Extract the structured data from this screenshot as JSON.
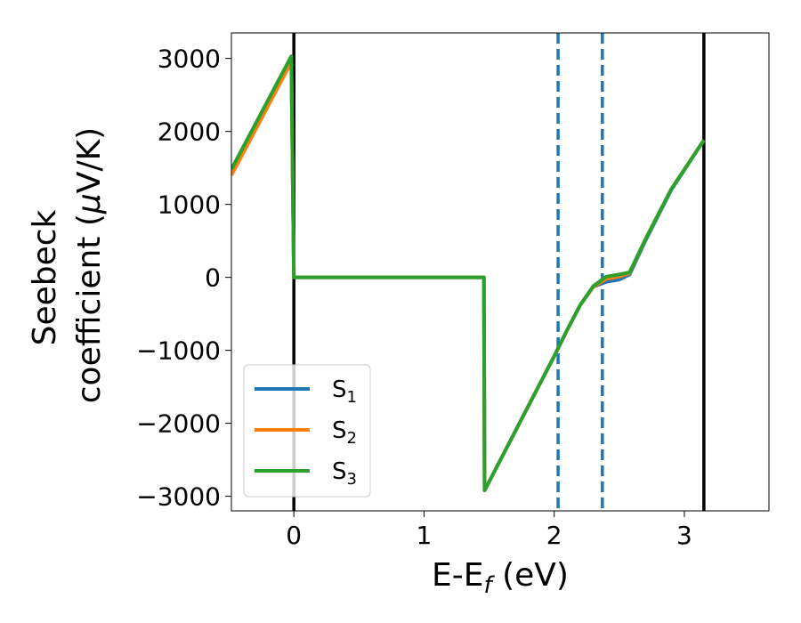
{
  "chart_data": {
    "type": "line",
    "title": "",
    "xlabel": "E-E",
    "xlabel_sub": "f",
    "xlabel_unit": " (eV)",
    "ylabel_line1": "Seebeck",
    "ylabel_line2_prefix": "coefficient  (",
    "ylabel_mu": "μ",
    "ylabel_line2_suffix": "V/K)",
    "xlim": [
      -0.48,
      3.65
    ],
    "ylim": [
      -3200,
      3350
    ],
    "x_ticks": [
      0,
      1,
      2,
      3
    ],
    "x_tick_labels": [
      "0",
      "1",
      "2",
      "3"
    ],
    "y_ticks": [
      3000,
      2000,
      1000,
      0,
      -1000,
      -2000,
      -3000
    ],
    "y_tick_labels": [
      "3000",
      "2000",
      "1000",
      "0",
      "−1000",
      "−2000",
      "−3000"
    ],
    "grid": false,
    "legend": "lower-left",
    "vertical_lines": [
      {
        "x": 0.0,
        "style": "solid",
        "color": "#000000"
      },
      {
        "x": 3.15,
        "style": "solid",
        "color": "#000000"
      },
      {
        "x": 2.03,
        "style": "dashed",
        "color": "#1f77b4"
      },
      {
        "x": 2.37,
        "style": "dashed",
        "color": "#1f77b4"
      }
    ],
    "series": [
      {
        "name": "S",
        "sub": "1",
        "color": "#1f77b4",
        "x": [
          -0.48,
          -0.02,
          0.0,
          1.46,
          1.465,
          2.0,
          2.1,
          2.2,
          2.3,
          2.4,
          2.5,
          2.58,
          2.7,
          2.9,
          3.15
        ],
        "y": [
          1480,
          3020,
          0,
          0,
          -2920,
          -1080,
          -720,
          -380,
          -130,
          -60,
          -30,
          40,
          500,
          1200,
          1880
        ]
      },
      {
        "name": "S",
        "sub": "2",
        "color": "#ff7f0e",
        "x": [
          -0.48,
          -0.02,
          0.0,
          1.46,
          1.465,
          2.0,
          2.1,
          2.2,
          2.3,
          2.4,
          2.5,
          2.58,
          2.7,
          2.9,
          3.15
        ],
        "y": [
          1400,
          2950,
          0,
          0,
          -2920,
          -1080,
          -720,
          -380,
          -130,
          -20,
          10,
          60,
          520,
          1210,
          1880
        ]
      },
      {
        "name": "S",
        "sub": "3",
        "color": "#2ca02c",
        "x": [
          -0.48,
          -0.02,
          0.0,
          1.46,
          1.465,
          2.0,
          2.1,
          2.2,
          2.3,
          2.4,
          2.5,
          2.58,
          2.7,
          2.9,
          3.15
        ],
        "y": [
          1480,
          3030,
          0,
          0,
          -2920,
          -1080,
          -720,
          -380,
          -120,
          10,
          40,
          70,
          520,
          1210,
          1880
        ]
      }
    ]
  }
}
